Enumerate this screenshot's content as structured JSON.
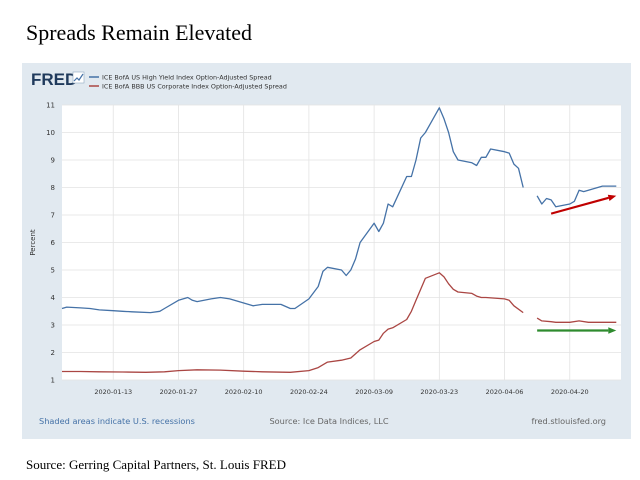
{
  "slide": {
    "title": "Spreads Remain Elevated",
    "source": "Source: Gerring Capital Partners, St. Louis FRED"
  },
  "fred": {
    "logo_text": "FRED",
    "footer_left": "Shaded areas indicate U.S. recessions",
    "footer_center": "Source: Ice Data Indices, LLC",
    "footer_right": "fred.stlouisfed.org"
  },
  "colors": {
    "high_yield": "#4572a7",
    "bbb": "#aa4643",
    "arrow_up": "#c00000",
    "arrow_flat": "#2e8b2e",
    "frame_bg": "#e1e9f0",
    "logo_navy": "#1f3a5c"
  },
  "chart_data": {
    "type": "line",
    "ylabel": "Percent",
    "ylim": [
      1,
      11
    ],
    "yticks": [
      1,
      2,
      3,
      4,
      5,
      6,
      7,
      8,
      9,
      10,
      11
    ],
    "xlim": [
      "2020-01-02",
      "2020-05-01"
    ],
    "xticks": [
      "2020-01-13",
      "2020-01-27",
      "2020-02-10",
      "2020-02-24",
      "2020-03-09",
      "2020-03-23",
      "2020-04-06",
      "2020-04-20"
    ],
    "grid": true,
    "legend_placement": "top-left",
    "series": [
      {
        "name": "ICE BofA US High Yield Index Option-Adjusted Spread",
        "color": "#4572a7",
        "segments": [
          [
            [
              "2020-01-02",
              3.6
            ],
            [
              "2020-01-03",
              3.65
            ],
            [
              "2020-01-06",
              3.62
            ],
            [
              "2020-01-08",
              3.6
            ],
            [
              "2020-01-10",
              3.55
            ],
            [
              "2020-01-13",
              3.52
            ],
            [
              "2020-01-15",
              3.5
            ],
            [
              "2020-01-17",
              3.48
            ],
            [
              "2020-01-21",
              3.45
            ],
            [
              "2020-01-23",
              3.5
            ],
            [
              "2020-01-24",
              3.6
            ],
            [
              "2020-01-27",
              3.9
            ],
            [
              "2020-01-29",
              4.0
            ],
            [
              "2020-01-30",
              3.9
            ],
            [
              "2020-01-31",
              3.85
            ],
            [
              "2020-02-03",
              3.95
            ],
            [
              "2020-02-05",
              4.0
            ],
            [
              "2020-02-07",
              3.95
            ],
            [
              "2020-02-10",
              3.8
            ],
            [
              "2020-02-12",
              3.7
            ],
            [
              "2020-02-14",
              3.75
            ],
            [
              "2020-02-18",
              3.75
            ],
            [
              "2020-02-20",
              3.6
            ],
            [
              "2020-02-21",
              3.6
            ],
            [
              "2020-02-24",
              3.95
            ],
            [
              "2020-02-26",
              4.4
            ],
            [
              "2020-02-27",
              4.95
            ],
            [
              "2020-02-28",
              5.1
            ],
            [
              "2020-03-02",
              5.0
            ],
            [
              "2020-03-03",
              4.8
            ],
            [
              "2020-03-04",
              5.0
            ],
            [
              "2020-03-05",
              5.4
            ],
            [
              "2020-03-06",
              6.0
            ],
            [
              "2020-03-09",
              6.7
            ],
            [
              "2020-03-10",
              6.4
            ],
            [
              "2020-03-11",
              6.7
            ],
            [
              "2020-03-12",
              7.4
            ],
            [
              "2020-03-13",
              7.3
            ],
            [
              "2020-03-16",
              8.4
            ],
            [
              "2020-03-17",
              8.4
            ],
            [
              "2020-03-18",
              9.0
            ],
            [
              "2020-03-19",
              9.8
            ],
            [
              "2020-03-20",
              10.0
            ],
            [
              "2020-03-23",
              10.9
            ],
            [
              "2020-03-24",
              10.5
            ],
            [
              "2020-03-25",
              10.0
            ],
            [
              "2020-03-26",
              9.3
            ],
            [
              "2020-03-27",
              9.0
            ],
            [
              "2020-03-30",
              8.9
            ],
            [
              "2020-03-31",
              8.8
            ],
            [
              "2020-04-01",
              9.1
            ],
            [
              "2020-04-02",
              9.1
            ],
            [
              "2020-04-03",
              9.4
            ],
            [
              "2020-04-06",
              9.3
            ],
            [
              "2020-04-07",
              9.25
            ],
            [
              "2020-04-08",
              8.85
            ],
            [
              "2020-04-09",
              8.7
            ],
            [
              "2020-04-10",
              8.0
            ]
          ],
          [
            [
              "2020-04-13",
              7.7
            ],
            [
              "2020-04-14",
              7.4
            ],
            [
              "2020-04-15",
              7.6
            ],
            [
              "2020-04-16",
              7.55
            ],
            [
              "2020-04-17",
              7.3
            ],
            [
              "2020-04-20",
              7.4
            ],
            [
              "2020-04-21",
              7.5
            ],
            [
              "2020-04-22",
              7.9
            ],
            [
              "2020-04-23",
              7.85
            ],
            [
              "2020-04-24",
              7.9
            ],
            [
              "2020-04-27",
              8.05
            ],
            [
              "2020-04-28",
              8.05
            ],
            [
              "2020-04-29",
              8.05
            ],
            [
              "2020-04-30",
              8.05
            ]
          ]
        ]
      },
      {
        "name": "ICE BofA BBB US Corporate Index Option-Adjusted Spread",
        "color": "#aa4643",
        "segments": [
          [
            [
              "2020-01-02",
              1.31
            ],
            [
              "2020-01-06",
              1.31
            ],
            [
              "2020-01-10",
              1.3
            ],
            [
              "2020-01-15",
              1.29
            ],
            [
              "2020-01-20",
              1.28
            ],
            [
              "2020-01-24",
              1.3
            ],
            [
              "2020-01-27",
              1.34
            ],
            [
              "2020-01-31",
              1.37
            ],
            [
              "2020-02-05",
              1.36
            ],
            [
              "2020-02-10",
              1.32
            ],
            [
              "2020-02-14",
              1.3
            ],
            [
              "2020-02-20",
              1.28
            ],
            [
              "2020-02-24",
              1.34
            ],
            [
              "2020-02-26",
              1.45
            ],
            [
              "2020-02-28",
              1.65
            ],
            [
              "2020-03-02",
              1.72
            ],
            [
              "2020-03-04",
              1.8
            ],
            [
              "2020-03-06",
              2.1
            ],
            [
              "2020-03-09",
              2.4
            ],
            [
              "2020-03-10",
              2.45
            ],
            [
              "2020-03-11",
              2.7
            ],
            [
              "2020-03-12",
              2.85
            ],
            [
              "2020-03-13",
              2.9
            ],
            [
              "2020-03-16",
              3.2
            ],
            [
              "2020-03-17",
              3.5
            ],
            [
              "2020-03-18",
              3.9
            ],
            [
              "2020-03-19",
              4.3
            ],
            [
              "2020-03-20",
              4.7
            ],
            [
              "2020-03-23",
              4.9
            ],
            [
              "2020-03-24",
              4.75
            ],
            [
              "2020-03-25",
              4.5
            ],
            [
              "2020-03-26",
              4.3
            ],
            [
              "2020-03-27",
              4.2
            ],
            [
              "2020-03-30",
              4.15
            ],
            [
              "2020-03-31",
              4.05
            ],
            [
              "2020-04-01",
              4.0
            ],
            [
              "2020-04-02",
              4.0
            ],
            [
              "2020-04-06",
              3.95
            ],
            [
              "2020-04-07",
              3.9
            ],
            [
              "2020-04-08",
              3.7
            ],
            [
              "2020-04-10",
              3.45
            ]
          ],
          [
            [
              "2020-04-13",
              3.25
            ],
            [
              "2020-04-14",
              3.15
            ],
            [
              "2020-04-16",
              3.12
            ],
            [
              "2020-04-17",
              3.1
            ],
            [
              "2020-04-20",
              3.1
            ],
            [
              "2020-04-22",
              3.15
            ],
            [
              "2020-04-24",
              3.1
            ],
            [
              "2020-04-27",
              3.1
            ],
            [
              "2020-04-30",
              3.1
            ]
          ]
        ]
      }
    ],
    "annotations": [
      {
        "type": "arrow",
        "color": "#c00000",
        "from": [
          "2020-04-16",
          7.05
        ],
        "to": [
          "2020-04-30",
          7.7
        ]
      },
      {
        "type": "arrow",
        "color": "#2e8b2e",
        "from": [
          "2020-04-13",
          2.8
        ],
        "to": [
          "2020-04-30",
          2.8
        ]
      }
    ]
  }
}
